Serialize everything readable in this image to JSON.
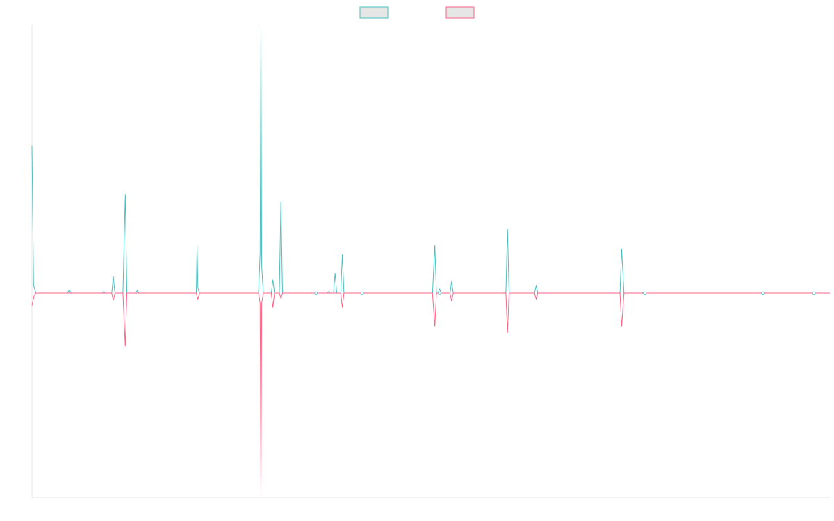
{
  "chart_data": {
    "type": "line",
    "title": "",
    "xlabel": "",
    "ylabel": "",
    "grid": false,
    "legend_position": "top-center",
    "x_range": [
      0,
      1
    ],
    "ylim": [
      -1,
      1
    ],
    "series": [
      {
        "color": "#4bc0c0",
        "fill_color": "#e6e6e6",
        "points": [
          [
            0.0,
            0.55
          ],
          [
            0.002,
            0.03
          ],
          [
            0.005,
            0.0
          ],
          [
            0.044,
            0.0
          ],
          [
            0.047,
            0.012
          ],
          [
            0.049,
            0.0
          ],
          [
            0.088,
            0.0
          ],
          [
            0.09,
            0.006
          ],
          [
            0.092,
            0.0
          ],
          [
            0.1,
            0.0
          ],
          [
            0.102,
            0.062
          ],
          [
            0.104,
            0.0
          ],
          [
            0.114,
            0.0
          ],
          [
            0.117,
            0.37
          ],
          [
            0.119,
            0.0
          ],
          [
            0.13,
            0.0
          ],
          [
            0.132,
            0.01
          ],
          [
            0.134,
            0.0
          ],
          [
            0.206,
            0.0
          ],
          [
            0.207,
            0.18
          ],
          [
            0.208,
            0.02
          ],
          [
            0.21,
            0.0
          ],
          [
            0.284,
            0.0
          ],
          [
            0.286,
            0.15
          ],
          [
            0.287,
            1.0
          ],
          [
            0.288,
            0.1
          ],
          [
            0.29,
            0.0
          ],
          [
            0.3,
            0.0
          ],
          [
            0.302,
            0.05
          ],
          [
            0.304,
            0.0
          ],
          [
            0.31,
            0.0
          ],
          [
            0.312,
            0.34
          ],
          [
            0.314,
            0.0
          ],
          [
            0.37,
            0.0
          ],
          [
            0.372,
            0.006
          ],
          [
            0.374,
            0.0
          ],
          [
            0.378,
            0.0
          ],
          [
            0.38,
            0.075
          ],
          [
            0.382,
            0.0
          ],
          [
            0.387,
            0.0
          ],
          [
            0.389,
            0.145
          ],
          [
            0.391,
            0.0
          ],
          [
            0.502,
            0.0
          ],
          [
            0.505,
            0.18
          ],
          [
            0.507,
            0.0
          ],
          [
            0.509,
            0.0
          ],
          [
            0.511,
            0.015
          ],
          [
            0.513,
            0.0
          ],
          [
            0.524,
            0.0
          ],
          [
            0.526,
            0.045
          ],
          [
            0.528,
            0.0
          ],
          [
            0.594,
            0.0
          ],
          [
            0.596,
            0.24
          ],
          [
            0.598,
            0.0
          ],
          [
            0.63,
            0.0
          ],
          [
            0.632,
            0.03
          ],
          [
            0.634,
            0.0
          ],
          [
            0.737,
            0.0
          ],
          [
            0.739,
            0.165
          ],
          [
            0.742,
            0.0
          ],
          [
            0.765,
            0.0
          ],
          [
            0.767,
            0.005
          ],
          [
            0.769,
            0.0
          ],
          [
            1.0,
            0.0
          ]
        ]
      },
      {
        "color": "#ff6384",
        "fill_color": "#e6e6e6",
        "points": [
          [
            0.0,
            -0.06
          ],
          [
            0.003,
            -0.01
          ],
          [
            0.005,
            0.0
          ],
          [
            0.1,
            0.0
          ],
          [
            0.102,
            -0.035
          ],
          [
            0.104,
            0.0
          ],
          [
            0.114,
            0.0
          ],
          [
            0.117,
            -0.26
          ],
          [
            0.119,
            0.0
          ],
          [
            0.206,
            0.0
          ],
          [
            0.208,
            -0.03
          ],
          [
            0.21,
            0.0
          ],
          [
            0.284,
            0.0
          ],
          [
            0.286,
            -0.05
          ],
          [
            0.287,
            -1.0
          ],
          [
            0.288,
            -0.05
          ],
          [
            0.29,
            0.0
          ],
          [
            0.3,
            0.0
          ],
          [
            0.302,
            -0.07
          ],
          [
            0.304,
            0.0
          ],
          [
            0.31,
            0.0
          ],
          [
            0.312,
            -0.025
          ],
          [
            0.314,
            0.0
          ],
          [
            0.387,
            0.0
          ],
          [
            0.389,
            -0.07
          ],
          [
            0.391,
            0.0
          ],
          [
            0.502,
            0.0
          ],
          [
            0.505,
            -0.165
          ],
          [
            0.507,
            0.0
          ],
          [
            0.524,
            0.0
          ],
          [
            0.526,
            -0.04
          ],
          [
            0.528,
            0.0
          ],
          [
            0.594,
            0.0
          ],
          [
            0.596,
            -0.195
          ],
          [
            0.598,
            0.0
          ],
          [
            0.63,
            0.0
          ],
          [
            0.632,
            -0.03
          ],
          [
            0.634,
            0.0
          ],
          [
            0.737,
            0.0
          ],
          [
            0.739,
            -0.165
          ],
          [
            0.742,
            0.0
          ],
          [
            1.0,
            0.0
          ]
        ]
      }
    ],
    "markers": [
      {
        "x": 0.356,
        "y": 0.0,
        "color": "#4bc0c0"
      },
      {
        "x": 0.414,
        "y": 0.0,
        "color": "#4bc0c0"
      },
      {
        "x": 0.511,
        "y": 0.0,
        "color": "#4bc0c0"
      },
      {
        "x": 0.768,
        "y": 0.0,
        "color": "#4bc0c0"
      },
      {
        "x": 0.916,
        "y": 0.0,
        "color": "#4bc0c0"
      },
      {
        "x": 0.98,
        "y": 0.0,
        "color": "#4bc0c0"
      }
    ]
  }
}
